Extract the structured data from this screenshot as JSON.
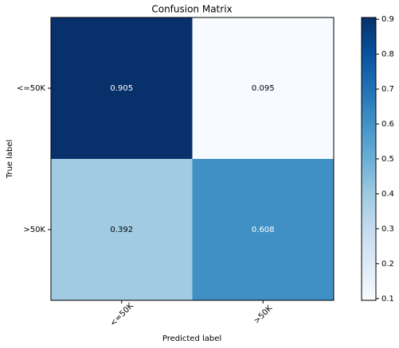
{
  "chart_data": {
    "type": "heatmap",
    "title": "Confusion Matrix",
    "x_label": "Predicted label",
    "y_label": "True label",
    "x_categories": [
      "<=50K",
      ">50K"
    ],
    "y_categories": [
      "<=50K",
      ">50K"
    ],
    "values": [
      [
        0.905,
        0.095
      ],
      [
        0.392,
        0.608
      ]
    ],
    "colormap": "Blues",
    "clim": [
      0.095,
      0.905
    ],
    "cticks": [
      0.1,
      0.2,
      0.3,
      0.4,
      0.5,
      0.6,
      0.7,
      0.8,
      0.9
    ]
  }
}
